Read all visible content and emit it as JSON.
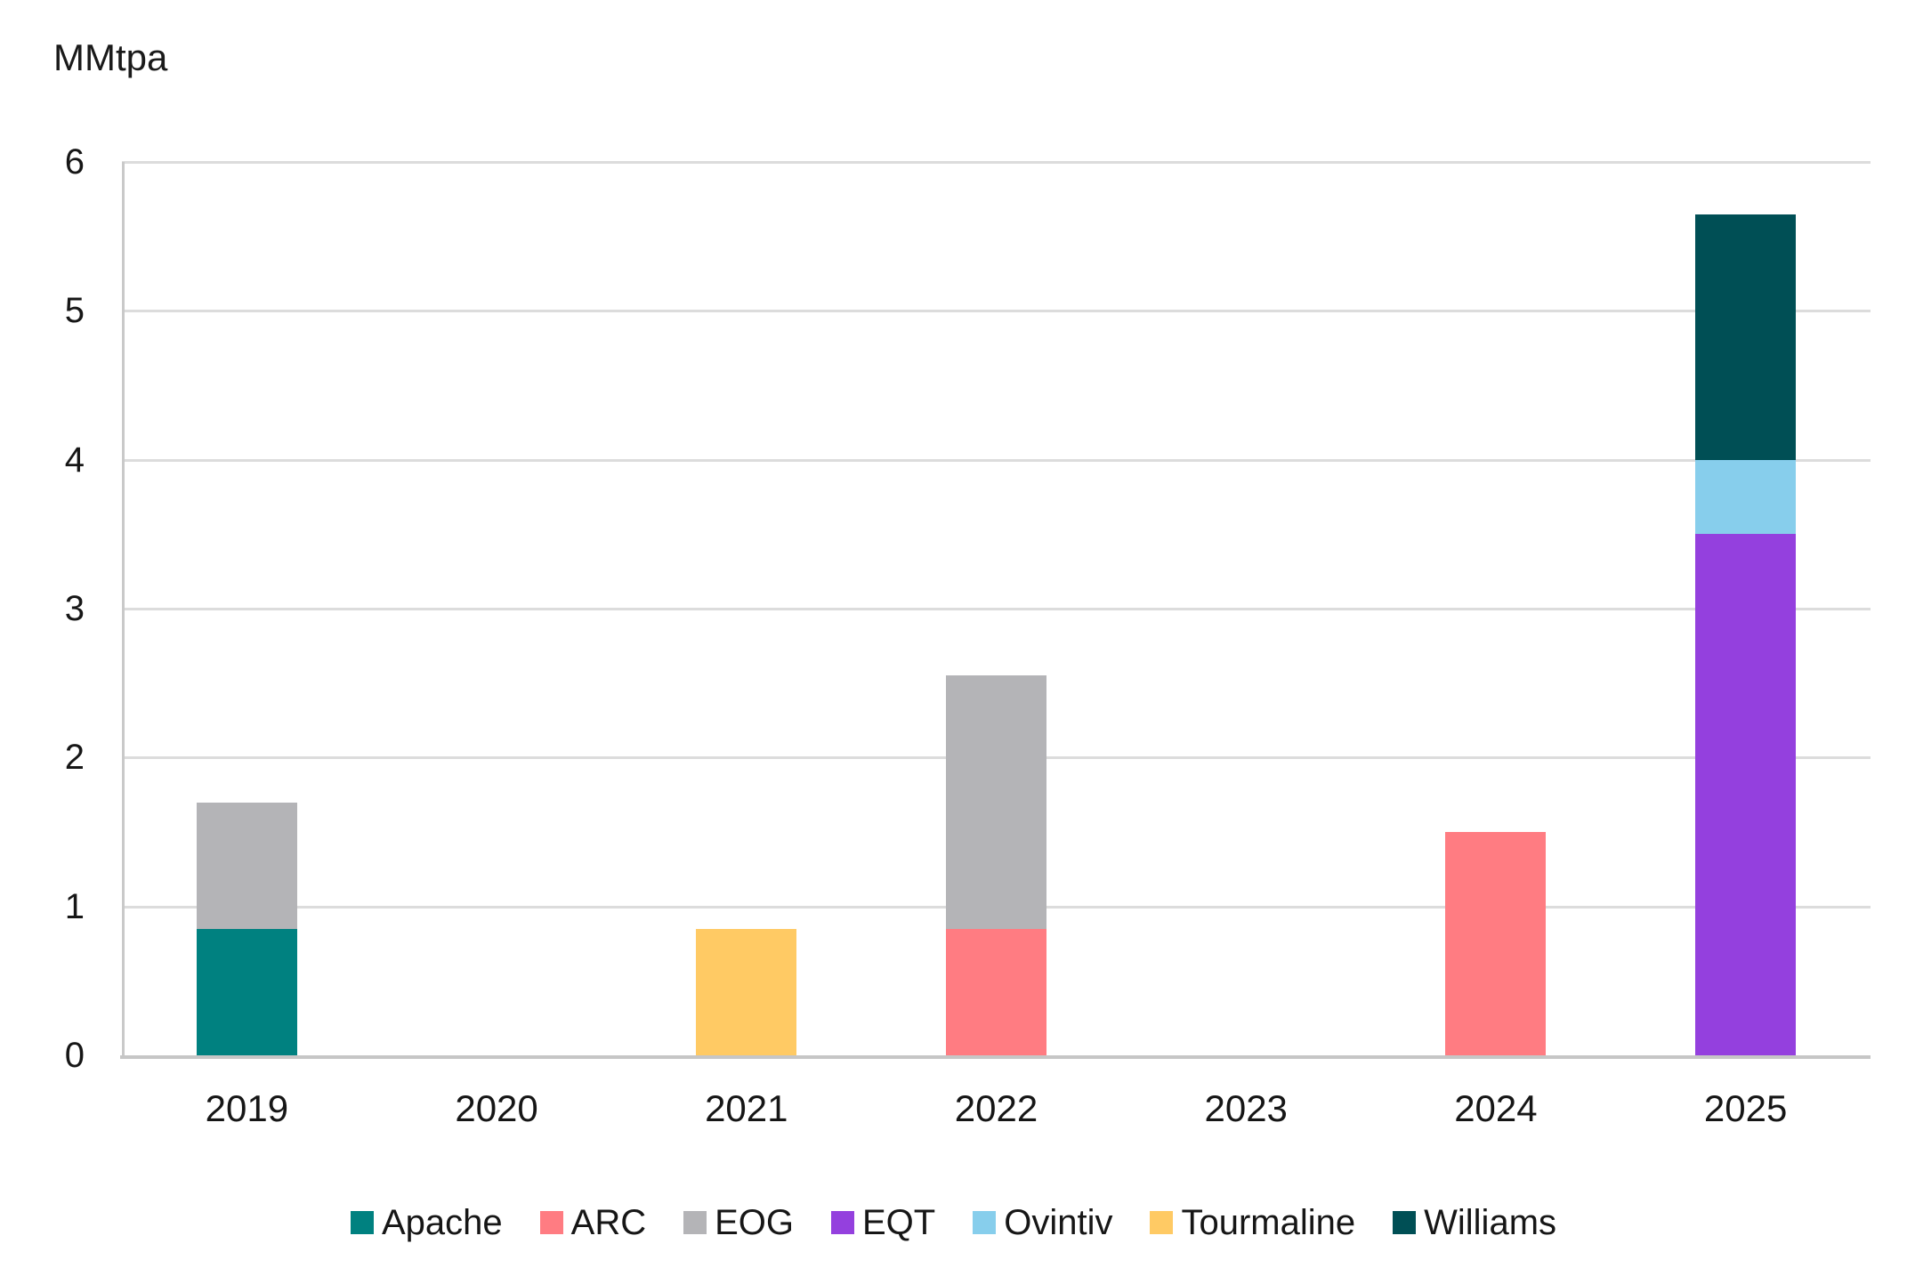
{
  "chart_data": {
    "type": "bar",
    "stacked": true,
    "title": "",
    "ylabel": "MMtpa",
    "xlabel": "",
    "categories": [
      "2019",
      "2020",
      "2021",
      "2022",
      "2023",
      "2024",
      "2025"
    ],
    "series": [
      {
        "name": "Apache",
        "color": "#008180",
        "values": [
          0.85,
          0,
          0,
          0,
          0,
          0,
          0
        ]
      },
      {
        "name": "ARC",
        "color": "#FF7C82",
        "values": [
          0,
          0,
          0,
          0.85,
          0,
          1.5,
          0
        ]
      },
      {
        "name": "EOG",
        "color": "#B4B4B7",
        "values": [
          0.85,
          0,
          0,
          1.7,
          0,
          0,
          0
        ]
      },
      {
        "name": "EQT",
        "color": "#9440DE",
        "values": [
          0,
          0,
          0,
          0,
          0,
          0,
          3.5
        ]
      },
      {
        "name": "Ovintiv",
        "color": "#87CEEC",
        "values": [
          0,
          0,
          0,
          0,
          0,
          0,
          0.5
        ]
      },
      {
        "name": "Tourmaline",
        "color": "#FFCA64",
        "values": [
          0,
          0,
          0.85,
          0,
          0,
          0,
          0
        ]
      },
      {
        "name": "Williams",
        "color": "#004F55",
        "values": [
          0,
          0,
          0,
          0,
          0,
          0,
          1.65
        ]
      }
    ],
    "ylim": [
      0,
      6
    ],
    "yticks": [
      0,
      1,
      2,
      3,
      4,
      5,
      6
    ],
    "grid": true,
    "legend_position": "bottom",
    "colors": {
      "gridline": "#DCDCDC",
      "axis_line": "#C6C6C6",
      "text": "#161616",
      "background": "#FFFFFF"
    }
  }
}
